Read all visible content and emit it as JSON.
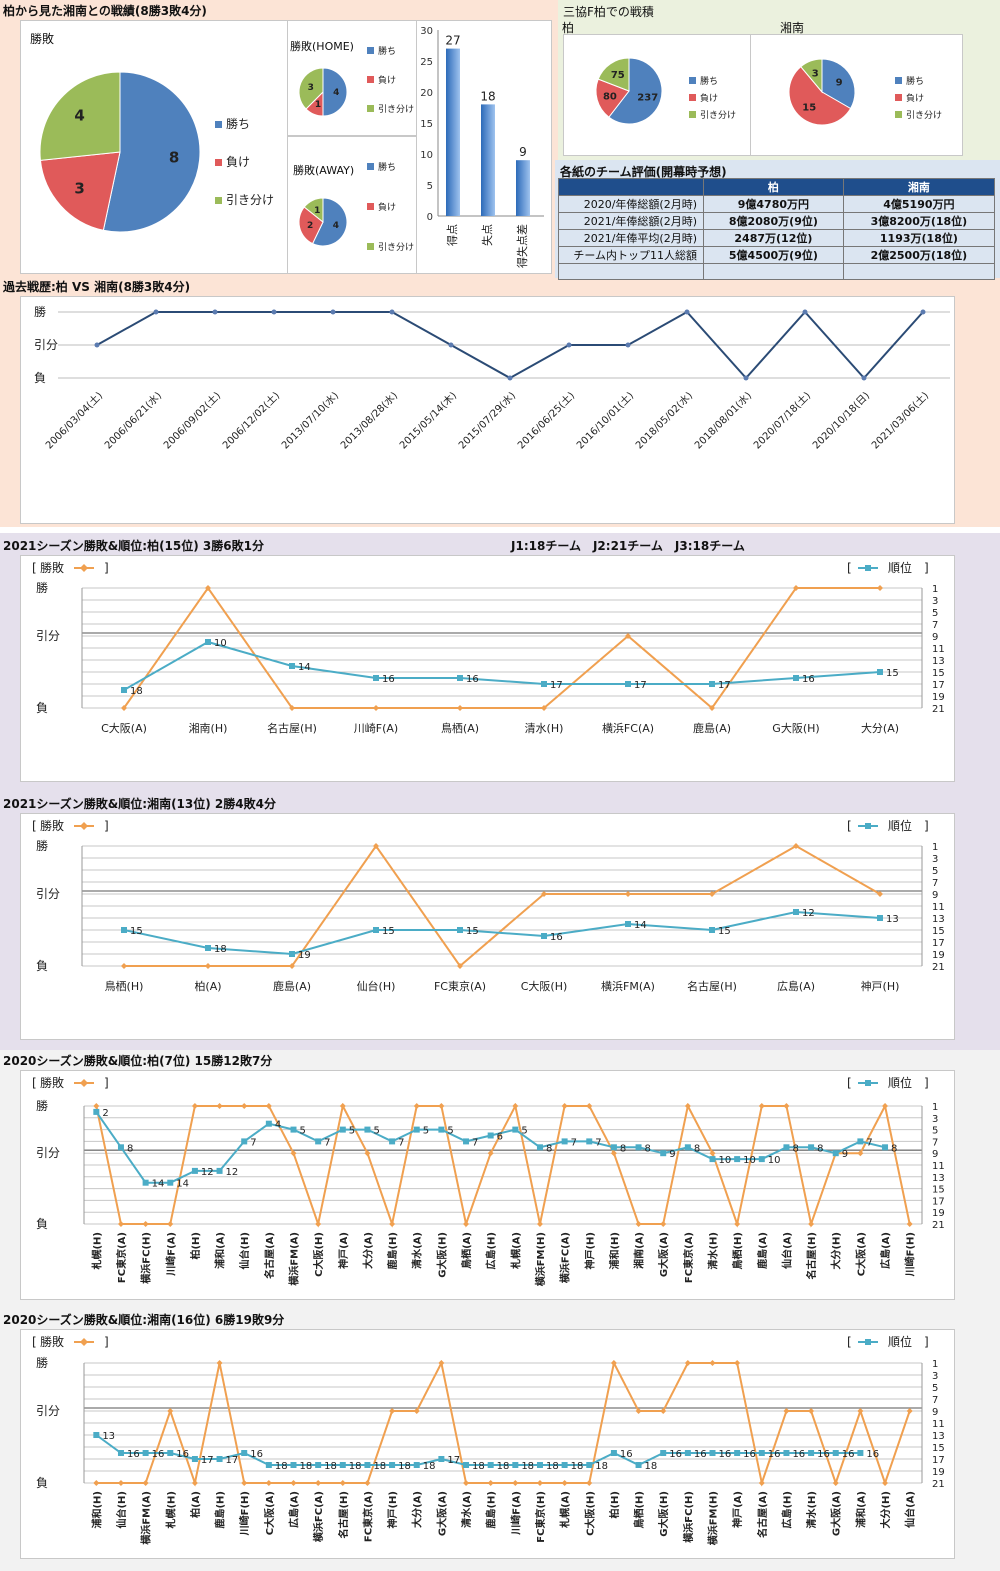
{
  "colors": {
    "win": "#4f81bd",
    "lose": "#e05a5a",
    "draw": "#9bbb59",
    "orange": "#f0a050",
    "teal": "#4bacc6",
    "navy": "#2b4b75"
  },
  "top": {
    "title": "柏から見た湘南との戦績(8勝3敗4分)",
    "main_pie": {
      "label": "勝敗",
      "values": [
        8,
        3,
        4
      ],
      "legend": [
        "勝ち",
        "負け",
        "引き分け"
      ]
    },
    "home_pie": {
      "label": "勝敗(HOME)",
      "values": [
        4,
        1,
        3
      ],
      "legend": [
        "勝ち",
        "負け",
        "引き分け"
      ]
    },
    "away_pie": {
      "label": "勝敗(AWAY)",
      "values": [
        4,
        2,
        1
      ],
      "legend": [
        "勝ち",
        "負け",
        "引き分け"
      ]
    },
    "bar": {
      "categories": [
        "得点",
        "失点",
        "得失点差"
      ],
      "values": [
        27,
        18,
        9
      ],
      "yticks": [
        "0",
        "5",
        "10",
        "15",
        "20",
        "25",
        "30"
      ]
    }
  },
  "mitsukyo": {
    "title": "三協F柏での戦積",
    "kashiwa": {
      "label": "柏",
      "values": [
        237,
        80,
        75
      ],
      "legend": [
        "勝ち",
        "負け",
        "引き分け"
      ]
    },
    "shonan": {
      "label": "湘南",
      "values": [
        9,
        15,
        3
      ],
      "legend": [
        "勝ち",
        "負け",
        "引き分け"
      ]
    }
  },
  "eval": {
    "title": "各紙のチーム評価(開幕時予想)",
    "headers": [
      "",
      "柏",
      "湘南"
    ],
    "rows": [
      [
        "2020/年俸総額(2月時)",
        "9億4780万円",
        "4億5190万円"
      ],
      [
        "2021/年俸総額(2月時)",
        "8億2080万(9位)",
        "3億8200万(18位)"
      ],
      [
        "2021/年俸平均(2月時)",
        "2487万(12位)",
        "1193万(18位)"
      ],
      [
        "チーム内トップ11人総額",
        "5億4500万(9位)",
        "2億2500万(18位)"
      ],
      [
        "",
        "",
        ""
      ]
    ]
  },
  "chart_data": [
    {
      "type": "line",
      "title": "過去戦歴:柏 VS 湘南(8勝3敗4分)",
      "y_levels": [
        "勝",
        "引分",
        "負"
      ],
      "x": [
        "2006/03/04(土)",
        "2006/06/21(水)",
        "2006/09/02(土)",
        "2006/12/02(土)",
        "2013/07/10(水)",
        "2013/08/28(水)",
        "2015/05/14(木)",
        "2015/07/29(水)",
        "2016/06/25(土)",
        "2016/10/01(土)",
        "2018/05/02(水)",
        "2018/08/01(水)",
        "2020/07/18(土)",
        "2020/10/18(日)",
        "2021/03/06(土)"
      ],
      "results": [
        "引分",
        "勝",
        "勝",
        "勝",
        "勝",
        "勝",
        "引分",
        "負",
        "引分",
        "引分",
        "勝",
        "負",
        "勝",
        "負",
        "勝"
      ]
    },
    {
      "type": "line",
      "title": "2021シーズン勝敗&順位:柏(15位) 3勝6敗1分",
      "note": "J1:18チーム　J2:21チーム　J3:18チーム",
      "legend_left": "勝敗",
      "legend_right": "順位",
      "y_levels": [
        "勝",
        "引分",
        "負"
      ],
      "rank_ticks": [
        "1",
        "3",
        "5",
        "7",
        "9",
        "11",
        "13",
        "15",
        "17",
        "19",
        "21"
      ],
      "x": [
        "C大阪(A)",
        "湘南(H)",
        "名古屋(H)",
        "川崎F(A)",
        "鳥栖(A)",
        "清水(H)",
        "横浜FC(A)",
        "鹿島(A)",
        "G大阪(H)",
        "大分(A)"
      ],
      "results": [
        "負",
        "勝",
        "負",
        "負",
        "負",
        "負",
        "引分",
        "負",
        "勝",
        "勝"
      ],
      "ranks": [
        18,
        10,
        14,
        16,
        16,
        17,
        17,
        17,
        16,
        15
      ]
    },
    {
      "type": "line",
      "title": "2021シーズン勝敗&順位:湘南(13位) 2勝4敗4分",
      "legend_left": "勝敗",
      "legend_right": "順位",
      "y_levels": [
        "勝",
        "引分",
        "負"
      ],
      "rank_ticks": [
        "1",
        "3",
        "5",
        "7",
        "9",
        "11",
        "13",
        "15",
        "17",
        "19",
        "21"
      ],
      "x": [
        "鳥栖(H)",
        "柏(A)",
        "鹿島(A)",
        "仙台(H)",
        "FC東京(A)",
        "C大阪(H)",
        "横浜FM(A)",
        "名古屋(H)",
        "広島(A)",
        "神戸(H)"
      ],
      "results": [
        "負",
        "負",
        "負",
        "勝",
        "負",
        "引分",
        "引分",
        "引分",
        "勝",
        "引分"
      ],
      "ranks": [
        15,
        18,
        19,
        15,
        15,
        16,
        14,
        15,
        12,
        13
      ]
    },
    {
      "type": "line",
      "title": "2020シーズン勝敗&順位:柏(7位) 15勝12敗7分",
      "legend_left": "勝敗",
      "legend_right": "順位",
      "y_levels": [
        "勝",
        "引分",
        "負"
      ],
      "rank_ticks": [
        "1",
        "3",
        "5",
        "7",
        "9",
        "11",
        "13",
        "15",
        "17",
        "19",
        "21"
      ],
      "x": [
        "札幌(H)",
        "FC東京(A)",
        "横浜FC(H)",
        "川崎F(A)",
        "柏(H)",
        "浦和(A)",
        "仙台(H)",
        "名古屋(A)",
        "横浜FM(A)",
        "C大阪(H)",
        "神戸(A)",
        "大分(A)",
        "鹿島(H)",
        "清水(A)",
        "G大阪(H)",
        "鳥栖(A)",
        "広島(H)",
        "札幌(A)",
        "横浜FM(H)",
        "横浜FC(A)",
        "神戸(H)",
        "浦和(H)",
        "湘南(A)",
        "G大阪(A)",
        "FC東京(A)",
        "清水(H)",
        "鳥栖(H)",
        "鹿島(A)",
        "仙台(A)",
        "名古屋(H)",
        "大分(H)",
        "C大阪(A)",
        "広島(A)",
        "川崎F(H)"
      ],
      "results": [
        "勝",
        "負",
        "負",
        "負",
        "勝",
        "勝",
        "勝",
        "勝",
        "引分",
        "負",
        "勝",
        "引分",
        "負",
        "勝",
        "勝",
        "負",
        "引分",
        "勝",
        "負",
        "勝",
        "勝",
        "引分",
        "負",
        "負",
        "勝",
        "引分",
        "負",
        "勝",
        "勝",
        "負",
        "引分",
        "引分",
        "勝",
        "負"
      ],
      "ranks": [
        2,
        8,
        14,
        14,
        12,
        12,
        7,
        4,
        5,
        7,
        5,
        5,
        7,
        5,
        5,
        7,
        6,
        5,
        8,
        7,
        7,
        8,
        8,
        9,
        8,
        10,
        10,
        10,
        8,
        8,
        9,
        7,
        8,
        null
      ]
    },
    {
      "type": "line",
      "title": "2020シーズン勝敗&順位:湘南(16位) 6勝19敗9分",
      "legend_left": "勝敗",
      "legend_right": "順位",
      "y_levels": [
        "勝",
        "引分",
        "負"
      ],
      "rank_ticks": [
        "1",
        "3",
        "5",
        "7",
        "9",
        "11",
        "13",
        "15",
        "17",
        "19",
        "21"
      ],
      "x": [
        "浦和(H)",
        "仙台(H)",
        "横浜FM(A)",
        "札幌(H)",
        "柏(A)",
        "鹿島(H)",
        "川崎F(H)",
        "C大阪(A)",
        "広島(A)",
        "横浜FC(A)",
        "名古屋(H)",
        "FC東京(A)",
        "神戸(H)",
        "大分(A)",
        "G大阪(A)",
        "清水(A)",
        "鹿島(H)",
        "川崎F(A)",
        "FC東京(H)",
        "札幌(A)",
        "C大阪(H)",
        "柏(H)",
        "鳥栖(H)",
        "G大阪(H)",
        "横浜FC(H)",
        "横浜FM(H)",
        "神戸(A)",
        "名古屋(A)",
        "広島(H)",
        "清水(H)",
        "G大阪(A)",
        "浦和(A)",
        "大分(H)",
        "仙台(A)"
      ],
      "results": [
        "負",
        "負",
        "負",
        "引分",
        "負",
        "勝",
        "負",
        "負",
        "負",
        "負",
        "負",
        "負",
        "引分",
        "引分",
        "勝",
        "負",
        "負",
        "負",
        "負",
        "負",
        "負",
        "勝",
        "引分",
        "引分",
        "勝",
        "勝",
        "勝",
        "負",
        "引分",
        "引分",
        "負",
        "引分",
        "負",
        "引分"
      ],
      "ranks": [
        13,
        16,
        16,
        16,
        17,
        17,
        16,
        18,
        18,
        18,
        18,
        18,
        18,
        18,
        17,
        18,
        18,
        18,
        18,
        18,
        18,
        16,
        18,
        16,
        16,
        16,
        16,
        16,
        16,
        16,
        16,
        16,
        null,
        null
      ]
    }
  ]
}
